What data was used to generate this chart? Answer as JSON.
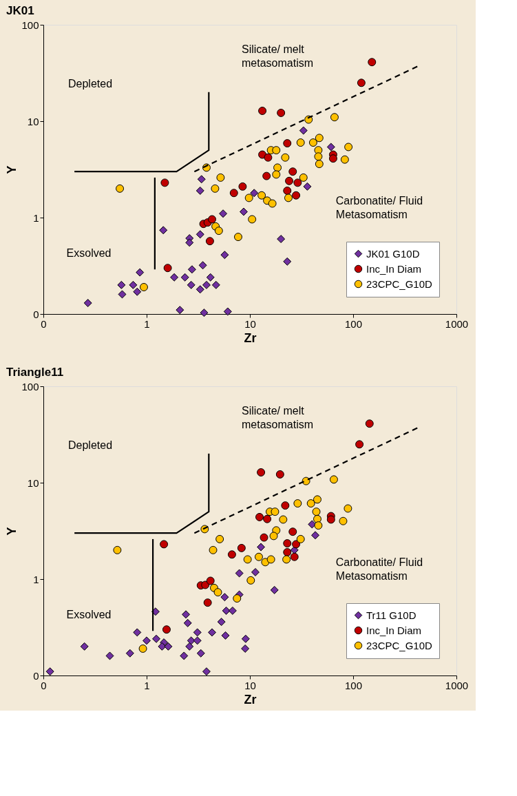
{
  "chart_data": [
    {
      "type": "scatter",
      "title": "JK01",
      "xlabel": "Zr",
      "ylabel": "Y",
      "log": "xy",
      "legend": "bottom right",
      "xlim": [
        0.1,
        1000
      ],
      "xticks": [
        {
          "value": 0.1,
          "label": "0"
        },
        1,
        10,
        100,
        1000
      ],
      "ylim": [
        0.1,
        100
      ],
      "yticks": [
        {
          "value": 0.1,
          "label": "0"
        },
        1,
        10,
        100
      ],
      "annotations": [
        "Silicate/ melt\nmetasomatism",
        "Depleted",
        "Carbonatite/ Fluid\nMetasomatism",
        "Exsolved"
      ],
      "series": [
        {
          "name": "JK01 G10D",
          "color": "#7030a0",
          "marker": "diamond",
          "x": [
            3.4,
            3.3,
            5.5,
            8.7,
            11,
            1.45,
            3.3,
            2.6,
            2.6,
            5.7,
            0.86,
            0.57,
            0.74,
            0.58,
            0.81,
            1.85,
            2.35,
            2.75,
            3.5,
            4.15,
            2.7,
            3.3,
            3.8,
            4.7,
            0.27,
            2.1,
            3.6,
            6.1,
            33,
            61,
            36,
            20,
            23
          ],
          "values": [
            2.5,
            1.9,
            1.1,
            1.15,
            1.8,
            0.74,
            0.67,
            0.61,
            0.55,
            0.41,
            0.27,
            0.2,
            0.2,
            0.16,
            0.17,
            0.24,
            0.24,
            0.29,
            0.32,
            0.24,
            0.2,
            0.18,
            0.2,
            0.2,
            0.13,
            0.11,
            0.103,
            0.106,
            8.0,
            5.4,
            2.1,
            0.6,
            0.35
          ]
        },
        {
          "name": "Inc_In Diam",
          "color": "#c00000",
          "marker": "circle",
          "x": [
            1.5,
            3.55,
            3.9,
            4.3,
            7.0,
            8.5,
            4.1,
            1.6,
            152,
            120,
            13.2,
            20,
            23,
            13.2,
            15,
            26,
            14.5,
            24,
            29,
            23,
            28,
            64,
            64
          ],
          "values": [
            2.3,
            0.86,
            0.89,
            0.96,
            1.8,
            2.1,
            0.57,
            0.3,
            41,
            25,
            12.8,
            12.2,
            5.9,
            4.5,
            4.2,
            3.0,
            2.7,
            2.4,
            2.3,
            1.9,
            1.7,
            4.5,
            4.1
          ]
        },
        {
          "name": "23CPC_G10D",
          "color": "#ffc000",
          "marker": "circle",
          "x": [
            0.55,
            3.8,
            5.2,
            4.6,
            9.8,
            10.5,
            4.65,
            5.0,
            7.7,
            0.94,
            37,
            66,
            31,
            41,
            47,
            46,
            46,
            47,
            90,
            83,
            16,
            18,
            22,
            18.5,
            18,
            33,
            13,
            14.7,
            16.5,
            23.6
          ],
          "values": [
            2.0,
            3.3,
            2.6,
            2.0,
            1.6,
            0.96,
            0.81,
            0.73,
            0.63,
            0.19,
            10.4,
            11.0,
            6.0,
            6.0,
            6.7,
            5.0,
            4.3,
            3.6,
            5.4,
            4.0,
            5.0,
            5.0,
            4.2,
            3.3,
            2.8,
            2.6,
            1.7,
            1.5,
            1.4,
            1.6
          ]
        },
        {
          "type": "line",
          "color": "#000000",
          "line_style": "solid",
          "marker": "none",
          "x": [
            0.2,
            1.95,
            4.0,
            4.0
          ],
          "values": [
            3.0,
            3.0,
            5.0,
            20
          ]
        },
        {
          "type": "line",
          "color": "#000000",
          "line_style": "solid",
          "marker": "none",
          "x": [
            1.2,
            1.2
          ],
          "values": [
            2.6,
            0.29
          ]
        },
        {
          "type": "line",
          "color": "#000000",
          "line_style": "dashed",
          "marker": "none",
          "x": [
            2.9,
            420
          ],
          "values": [
            3.0,
            37
          ]
        }
      ]
    },
    {
      "type": "scatter",
      "title": "Triangle11",
      "xlabel": "Zr",
      "ylabel": "Y",
      "log": "xy",
      "legend": "bottom right",
      "xlim": [
        0.1,
        1000
      ],
      "xticks": [
        {
          "value": 0.1,
          "label": "0"
        },
        1,
        10,
        100,
        1000
      ],
      "ylim": [
        0.1,
        100
      ],
      "yticks": [
        {
          "value": 0.1,
          "label": "0"
        },
        1,
        10,
        100
      ],
      "annotations": [
        "Silicate/ melt\nmetasomatism",
        "Depleted",
        "Carbonatite/ Fluid\nMetasomatism",
        "Exsolved"
      ],
      "series": [
        {
          "name": "Tr11 G10D",
          "color": "#7030a0",
          "marker": "diamond",
          "x": [
            0.116,
            0.25,
            0.44,
            0.69,
            0.81,
            1.0,
            1.22,
            1.24,
            1.47,
            1.41,
            1.62,
            2.4,
            2.5,
            3.1,
            2.7,
            3.1,
            2.6,
            2.3,
            3.35,
            3.8,
            4.3,
            5.3,
            5.9,
            6.8,
            5.8,
            9.1,
            9.0,
            5.7,
            7.9,
            7.9,
            40,
            43,
            12.8,
            27,
            11.3,
            17.3
          ],
          "values": [
            0.11,
            0.2,
            0.16,
            0.17,
            0.28,
            0.23,
            0.46,
            0.24,
            0.22,
            0.2,
            0.2,
            0.43,
            0.35,
            0.28,
            0.23,
            0.23,
            0.2,
            0.16,
            0.17,
            0.11,
            0.28,
            0.36,
            0.47,
            0.47,
            0.26,
            0.24,
            0.19,
            0.65,
            0.69,
            1.15,
            3.7,
            2.85,
            2.15,
            2.0,
            1.18,
            0.77
          ]
        },
        {
          "name": "Inc_In Diam",
          "color": "#c00000",
          "marker": "circle",
          "x": [
            1.47,
            3.35,
            3.7,
            4.15,
            6.7,
            8.3,
            3.9,
            1.56,
            144,
            115,
            12.8,
            19.6,
            22,
            12.4,
            14.7,
            26,
            13.7,
            23,
            28,
            23,
            27,
            61,
            61
          ],
          "values": [
            2.3,
            0.86,
            0.87,
            0.96,
            1.8,
            2.1,
            0.57,
            0.3,
            41,
            25,
            12.8,
            12.2,
            5.8,
            4.4,
            4.2,
            3.1,
            2.7,
            2.35,
            2.3,
            1.9,
            1.7,
            4.5,
            4.15
          ]
        },
        {
          "name": "23CPC_G10D",
          "color": "#ffc000",
          "marker": "circle",
          "x": [
            0.52,
            3.65,
            5.1,
            4.4,
            9.5,
            10.2,
            4.5,
            4.9,
            7.5,
            0.92,
            35,
            65,
            29,
            39,
            45,
            44,
            45,
            46,
            89,
            80,
            15.6,
            17.5,
            21,
            18,
            17,
            31,
            12.2,
            14.1,
            16,
            22.6
          ],
          "values": [
            2.0,
            3.3,
            2.6,
            2.0,
            1.6,
            0.97,
            0.81,
            0.73,
            0.63,
            0.19,
            10.4,
            10.8,
            6.1,
            6.1,
            6.7,
            5.0,
            4.2,
            3.6,
            5.4,
            4.0,
            5.0,
            5.0,
            4.15,
            3.2,
            2.8,
            2.6,
            1.7,
            1.5,
            1.6,
            1.6
          ]
        },
        {
          "type": "line",
          "color": "#000000",
          "line_style": "solid",
          "marker": "none",
          "x": [
            0.2,
            1.95,
            4.0,
            4.0
          ],
          "values": [
            3.0,
            3.0,
            5.0,
            20
          ]
        },
        {
          "type": "line",
          "color": "#000000",
          "line_style": "solid",
          "marker": "none",
          "x": [
            1.15,
            1.15
          ],
          "values": [
            2.6,
            0.29
          ]
        },
        {
          "type": "line",
          "color": "#000000",
          "line_style": "dashed",
          "marker": "none",
          "x": [
            2.9,
            420
          ],
          "values": [
            3.0,
            37
          ]
        }
      ]
    }
  ]
}
